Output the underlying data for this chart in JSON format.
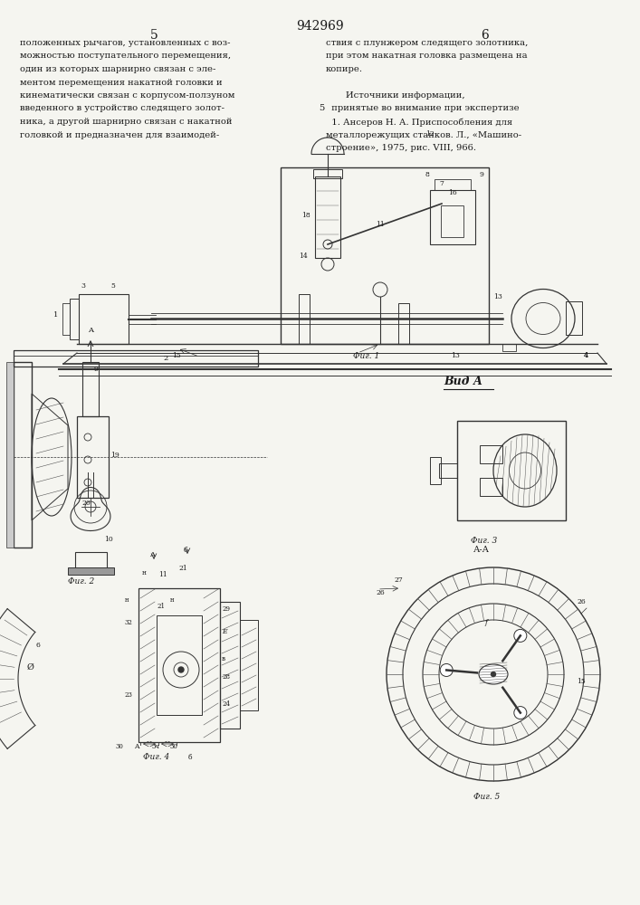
{
  "page_bg": "#f5f5f0",
  "title_number": "942969",
  "page_left": "5",
  "page_right": "6",
  "left_text": [
    "положенных рычагов, установленных с воз-",
    "можностью поступательного перемещения,",
    "один из которых шарнирно связан с эле-",
    "ментом перемещения накатной головки и",
    "кинематически связан с корпусом-ползуном",
    "введенного в устройство следящего золот-",
    "ника, а другой шарнирно связан с накатной",
    "головкой и предназначен для взаимодей-"
  ],
  "right_text": [
    "ствия с плунжером следящего золотника,",
    "при этом накатная головка размещена на",
    "копире.",
    "",
    "       Источники информации,",
    "  принятые во внимание при экспертизе",
    "  1. Ансеров Н. А. Приспособления для",
    "металлорежущих станков. Л., «Машино-",
    "строение», 1975, рис. VIII, 966."
  ],
  "text_color": "#1a1a1a",
  "line_color": "#333333",
  "hatch_color": "#555555",
  "fig1_caption": "Фиг. 1",
  "fig2_caption": "Фиг. 2",
  "fig3_caption": "Фиг. 3",
  "fig4_caption": "Фиг. 4",
  "fig5_caption": "Фиг. 5",
  "vid_a_label": "Вид А",
  "aa_label": "А-А"
}
